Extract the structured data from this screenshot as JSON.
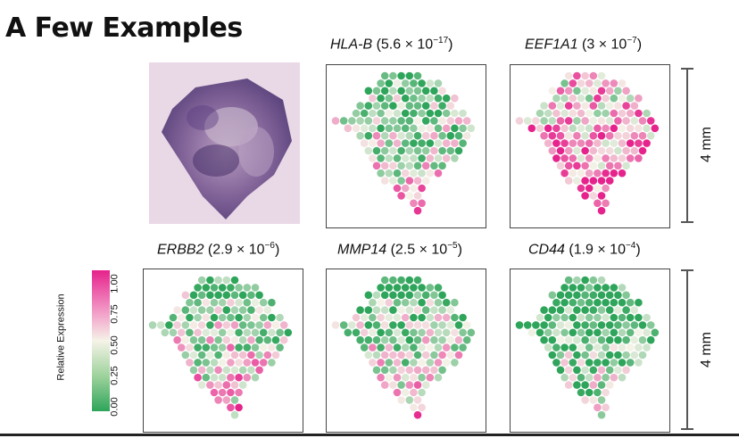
{
  "slide": {
    "title": "A Few Examples"
  },
  "panels": [
    {
      "gene": "HLA-B",
      "pvalue": "(5.6 × 10",
      "exp": "−17",
      "close": ")",
      "bias": -0.1
    },
    {
      "gene": "EEF1A1",
      "pvalue": "(3 × 10",
      "exp": "−7",
      "close": ")",
      "bias": 0.25
    },
    {
      "gene": "ERBB2",
      "pvalue": "(2.9 × 10",
      "exp": "−6",
      "close": ")",
      "bias": -0.05
    },
    {
      "gene": "MMP14",
      "pvalue": "(2.5 × 10",
      "exp": "−5",
      "close": ")",
      "bias": -0.1
    },
    {
      "gene": "CD44",
      "pvalue": "(1.9 × 10",
      "exp": "−4",
      "close": ")",
      "bias": -0.3
    }
  ],
  "scale": {
    "label": "4 mm"
  },
  "legend": {
    "title": "Relative Expression",
    "ticks": [
      "1.00",
      "0.75",
      "0.50",
      "0.25",
      "0.00"
    ],
    "colors": {
      "high": "#e6238c",
      "mid": "#f5f3e8",
      "low": "#2ea55a"
    }
  }
}
